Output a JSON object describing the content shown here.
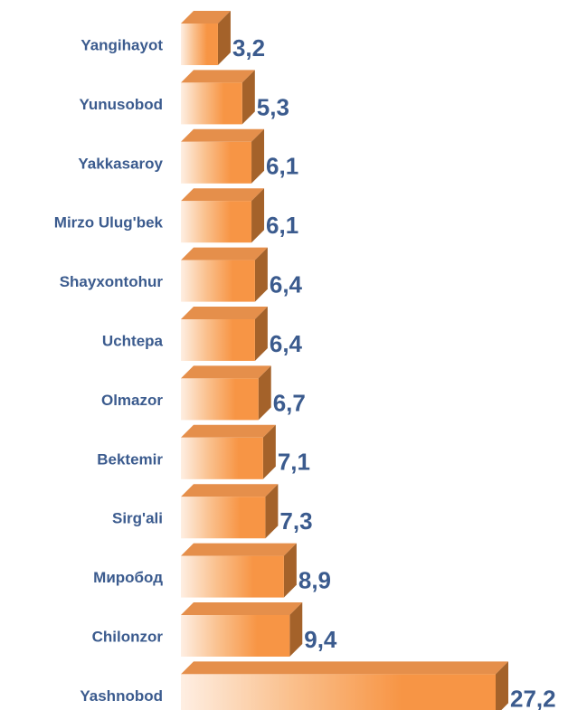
{
  "chart_data": {
    "type": "bar3d",
    "categories": [
      "Yangihayot",
      "Yunusobod",
      "Yakkasaroy",
      "Mirzo Ulug'bek",
      "Shayxontohur",
      "Uchtepa",
      "Olmazor",
      "Bektemir",
      "Sirg'ali",
      "Миробод",
      "Chilonzor",
      "Yashnobod"
    ],
    "values": [
      3.2,
      5.3,
      6.1,
      6.1,
      6.4,
      6.4,
      6.7,
      7.1,
      7.3,
      8.9,
      9.4,
      27.2
    ],
    "value_labels": [
      "3,2",
      "5,3",
      "6,1",
      "6,1",
      "6,4",
      "6,4",
      "6,7",
      "7,1",
      "7,3",
      "8,9",
      "9,4",
      "27,2"
    ],
    "color": "#f79646"
  }
}
